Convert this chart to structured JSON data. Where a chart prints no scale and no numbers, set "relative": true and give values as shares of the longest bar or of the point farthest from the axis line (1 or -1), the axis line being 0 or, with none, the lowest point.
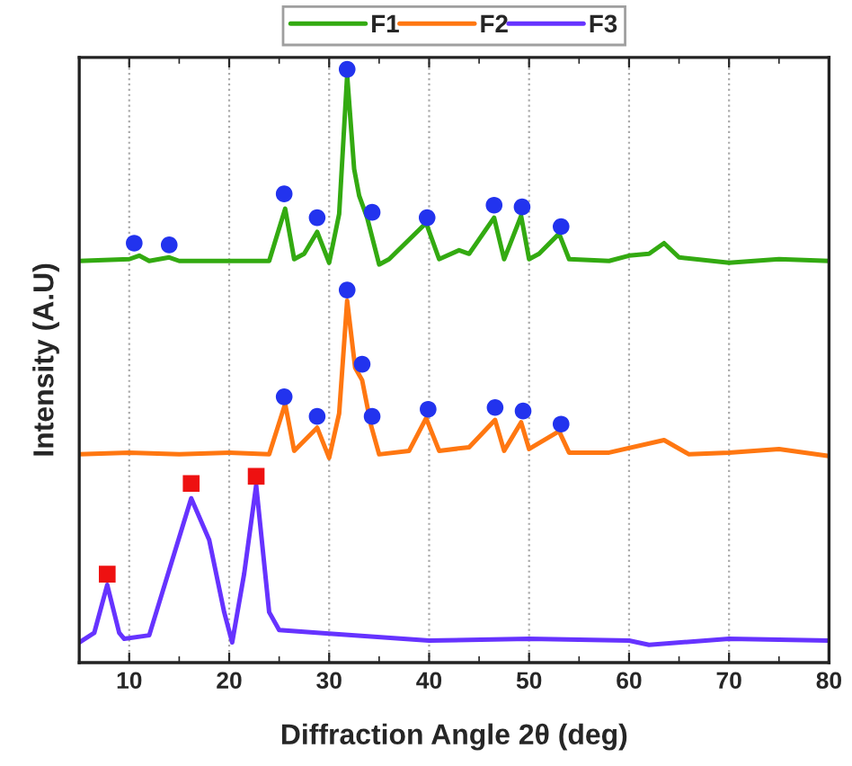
{
  "chart_data": {
    "type": "line",
    "xlabel": "Diffraction Angle 2θ (deg)",
    "ylabel": "Intensity (A.U)",
    "relative": true,
    "xlim": [
      5,
      80
    ],
    "xticks": [
      10,
      20,
      30,
      40,
      50,
      60,
      70,
      80
    ],
    "grid": "x",
    "legend": "top",
    "line_style": "solid",
    "series": [
      {
        "name": "F1",
        "color": "#33aa11",
        "x": [
          5,
          10,
          11,
          12,
          14,
          15,
          20,
          24,
          25.6,
          26.5,
          27.5,
          28.8,
          30,
          31,
          31.8,
          32.5,
          33,
          33.8,
          35,
          36,
          39.7,
          41,
          43,
          44,
          46.5,
          47.5,
          48,
          49.2,
          50,
          51,
          53,
          54,
          58,
          60,
          62,
          63.5,
          65,
          70,
          75,
          80
        ],
        "values": [
          0.677,
          0.68,
          0.686,
          0.677,
          0.683,
          0.677,
          0.677,
          0.677,
          0.765,
          0.68,
          0.689,
          0.726,
          0.674,
          0.756,
          0.99,
          0.832,
          0.787,
          0.75,
          0.671,
          0.68,
          0.741,
          0.68,
          0.695,
          0.689,
          0.75,
          0.68,
          0.701,
          0.753,
          0.68,
          0.689,
          0.723,
          0.68,
          0.677,
          0.686,
          0.689,
          0.707,
          0.683,
          0.674,
          0.68,
          0.677
        ]
      },
      {
        "name": "F2",
        "color": "#ff7711",
        "x": [
          5,
          10,
          15,
          20,
          24,
          25.6,
          26.5,
          28.8,
          30,
          31,
          31.8,
          32.6,
          33.3,
          34.2,
          35,
          38,
          39.7,
          41,
          44,
          46.6,
          47.5,
          49.2,
          50,
          53,
          54,
          58,
          63.5,
          66,
          70,
          75,
          80
        ],
        "values": [
          0.351,
          0.354,
          0.351,
          0.354,
          0.351,
          0.436,
          0.357,
          0.396,
          0.345,
          0.42,
          0.61,
          0.497,
          0.476,
          0.399,
          0.351,
          0.357,
          0.412,
          0.357,
          0.363,
          0.409,
          0.357,
          0.405,
          0.36,
          0.39,
          0.354,
          0.354,
          0.375,
          0.351,
          0.354,
          0.36,
          0.348
        ]
      },
      {
        "name": "F3",
        "color": "#6633ff",
        "x": [
          5,
          6.5,
          7.8,
          9,
          9.5,
          12,
          14,
          16.2,
          18,
          19.5,
          20.3,
          21.5,
          22.7,
          24,
          25,
          30,
          40,
          50,
          60,
          62,
          70,
          80
        ],
        "values": [
          0.034,
          0.05,
          0.131,
          0.05,
          0.04,
          0.046,
          0.156,
          0.277,
          0.207,
          0.085,
          0.034,
          0.15,
          0.299,
          0.085,
          0.055,
          0.049,
          0.037,
          0.04,
          0.037,
          0.03,
          0.04,
          0.037
        ]
      },
      {
        "type": "scatter",
        "marker": "circle",
        "color": "#2233ee",
        "x": [
          10.5,
          14,
          25.5,
          28.8,
          31.8,
          34.3,
          39.8,
          46.5,
          49.3,
          53.2
        ],
        "values": [
          0.707,
          0.704,
          0.79,
          0.75,
          1.0,
          0.759,
          0.75,
          0.771,
          0.768,
          0.735
        ]
      },
      {
        "type": "scatter",
        "marker": "circle",
        "color": "#2233ee",
        "x": [
          25.5,
          28.8,
          31.8,
          33.3,
          34.3,
          39.9,
          46.6,
          49.4,
          53.2
        ],
        "values": [
          0.448,
          0.415,
          0.628,
          0.503,
          0.415,
          0.427,
          0.43,
          0.424,
          0.402
        ]
      },
      {
        "type": "scatter",
        "marker": "square",
        "color": "#ee1111",
        "x": [
          7.8,
          16.2,
          22.7
        ],
        "values": [
          0.149,
          0.302,
          0.314
        ]
      }
    ]
  }
}
